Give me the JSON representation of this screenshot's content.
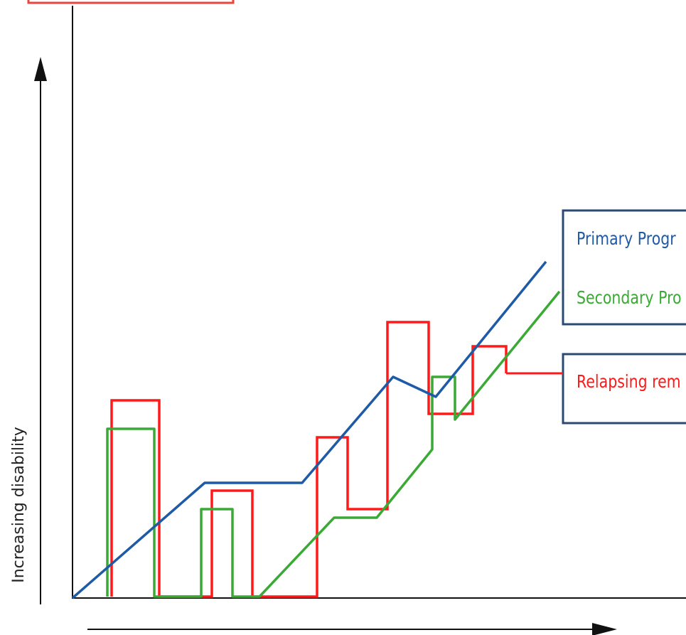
{
  "axes": {
    "y_label": "Increasing disability"
  },
  "legend": {
    "primary": {
      "label": "Primary Progr",
      "color": "#1f5aa6"
    },
    "secondary": {
      "label": "Secondary Pro",
      "color": "#3aa935"
    },
    "relapsing": {
      "label": "Relapsing rem",
      "color": "#ff1a1a"
    },
    "box_border_color": "#2b4a72"
  },
  "colors": {
    "axis": "#111111",
    "top_tab": "#e8473f"
  },
  "icons": {
    "y_arrow": "arrow-up-icon",
    "x_arrow": "arrow-right-icon"
  }
}
